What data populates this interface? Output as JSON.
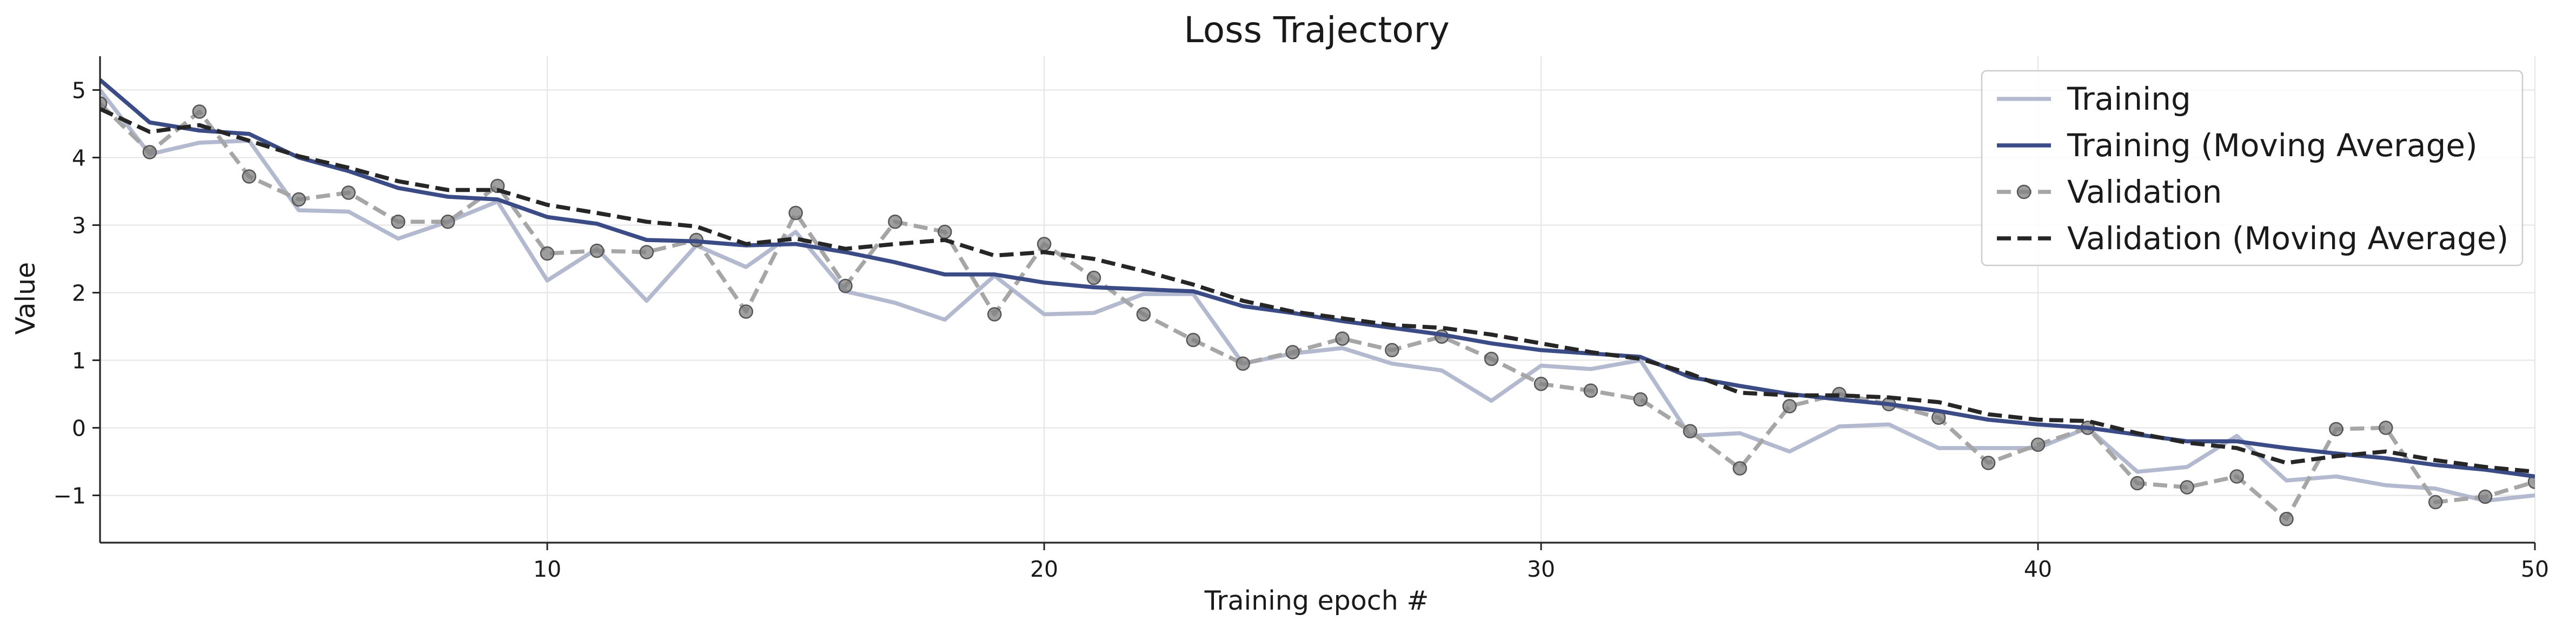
{
  "chart_data": {
    "type": "line",
    "title": "Loss Trajectory",
    "xlabel": "Training epoch #",
    "ylabel": "Value",
    "xlim": [
      1,
      50
    ],
    "ylim": [
      -1.7,
      5.5
    ],
    "xticks": [
      10,
      20,
      30,
      40,
      50
    ],
    "yticks": [
      -1,
      0,
      1,
      2,
      3,
      4,
      5
    ],
    "grid": true,
    "legend_position": "top-right",
    "x": [
      1,
      2,
      3,
      4,
      5,
      6,
      7,
      8,
      9,
      10,
      11,
      12,
      13,
      14,
      15,
      16,
      17,
      18,
      19,
      20,
      21,
      22,
      23,
      24,
      25,
      26,
      27,
      28,
      29,
      30,
      31,
      32,
      33,
      34,
      35,
      36,
      37,
      38,
      39,
      40,
      41,
      42,
      43,
      44,
      45,
      46,
      47,
      48,
      49,
      50
    ],
    "series": [
      {
        "name": "Training",
        "color": "#b3b9cf",
        "dash": "solid",
        "markers": false,
        "values": [
          5.0,
          4.05,
          4.22,
          4.25,
          3.22,
          3.2,
          2.8,
          3.05,
          3.35,
          2.18,
          2.65,
          1.88,
          2.7,
          2.38,
          2.9,
          2.02,
          1.85,
          1.6,
          2.25,
          1.68,
          1.7,
          1.98,
          1.98,
          0.95,
          1.1,
          1.18,
          0.95,
          0.85,
          0.4,
          0.92,
          0.87,
          1.0,
          -0.12,
          -0.08,
          -0.35,
          0.02,
          0.05,
          -0.3,
          -0.3,
          -0.3,
          0.0,
          -0.65,
          -0.58,
          -0.12,
          -0.78,
          -0.72,
          -0.85,
          -0.9,
          -1.08,
          -1.0
        ]
      },
      {
        "name": "Training (Moving Average)",
        "color": "#3b4b86",
        "dash": "solid",
        "markers": false,
        "values": [
          5.15,
          4.52,
          4.4,
          4.35,
          4.0,
          3.8,
          3.55,
          3.42,
          3.38,
          3.12,
          3.02,
          2.78,
          2.76,
          2.7,
          2.72,
          2.6,
          2.45,
          2.27,
          2.27,
          2.15,
          2.08,
          2.05,
          2.02,
          1.8,
          1.7,
          1.58,
          1.48,
          1.38,
          1.25,
          1.15,
          1.1,
          1.05,
          0.75,
          0.62,
          0.5,
          0.42,
          0.35,
          0.25,
          0.12,
          0.05,
          0.0,
          -0.1,
          -0.2,
          -0.2,
          -0.3,
          -0.38,
          -0.45,
          -0.55,
          -0.62,
          -0.72
        ]
      },
      {
        "name": "Validation",
        "color": "#a6a6a6",
        "dash": "dashed",
        "markers": true,
        "values": [
          4.8,
          4.08,
          4.68,
          3.72,
          3.38,
          3.48,
          3.05,
          3.05,
          3.58,
          2.58,
          2.62,
          2.6,
          2.78,
          1.72,
          3.18,
          2.1,
          3.05,
          2.9,
          1.68,
          2.72,
          2.22,
          1.68,
          1.3,
          0.95,
          1.12,
          1.32,
          1.15,
          1.35,
          1.02,
          0.65,
          0.55,
          0.42,
          -0.05,
          -0.6,
          0.32,
          0.5,
          0.35,
          0.15,
          -0.52,
          -0.25,
          0.0,
          -0.82,
          -0.88,
          -0.72,
          -1.35,
          -0.02,
          0.0,
          -1.1,
          -1.02,
          -0.8
        ]
      },
      {
        "name": "Validation (Moving Average)",
        "color": "#262626",
        "dash": "dashed",
        "markers": false,
        "values": [
          4.72,
          4.38,
          4.48,
          4.25,
          4.02,
          3.85,
          3.65,
          3.52,
          3.52,
          3.3,
          3.18,
          3.05,
          2.98,
          2.72,
          2.8,
          2.65,
          2.72,
          2.78,
          2.55,
          2.6,
          2.5,
          2.32,
          2.12,
          1.88,
          1.72,
          1.62,
          1.52,
          1.48,
          1.38,
          1.25,
          1.12,
          1.02,
          0.8,
          0.52,
          0.48,
          0.48,
          0.45,
          0.38,
          0.2,
          0.12,
          0.1,
          -0.08,
          -0.22,
          -0.3,
          -0.52,
          -0.42,
          -0.35,
          -0.48,
          -0.58,
          -0.65
        ]
      }
    ]
  }
}
